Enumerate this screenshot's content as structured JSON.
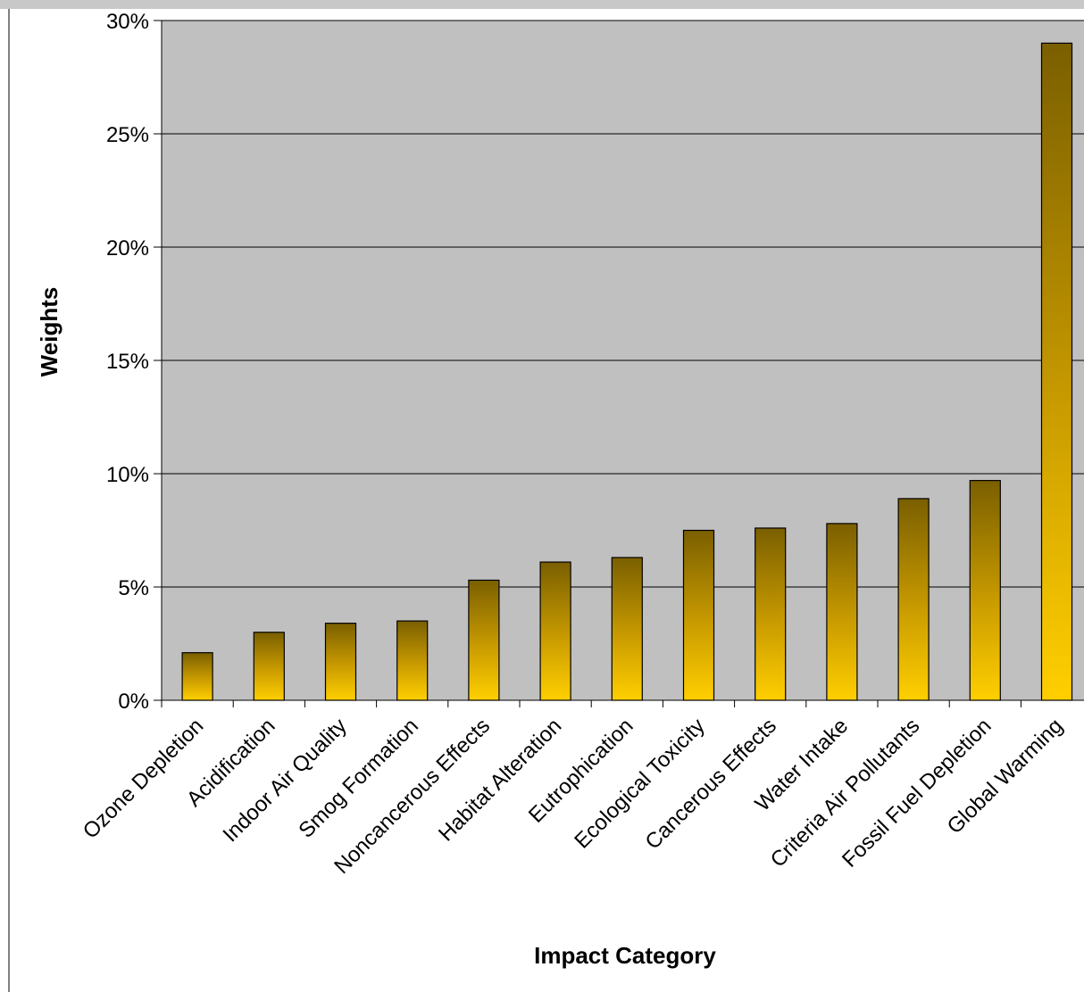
{
  "chart_data": {
    "type": "bar",
    "title": "",
    "xlabel": "Impact Category",
    "ylabel": "Weights",
    "ylim": [
      0,
      0.3
    ],
    "y_ticks": [
      0,
      0.05,
      0.1,
      0.15,
      0.2,
      0.25,
      0.3
    ],
    "y_tick_labels": [
      "0%",
      "5%",
      "10%",
      "15%",
      "20%",
      "25%",
      "30%"
    ],
    "categories": [
      "Ozone Depletion",
      "Acidification",
      "Indoor Air Quality",
      "Smog Formation",
      "Noncancerous Effects",
      "Habitat Alteration",
      "Eutrophication",
      "Ecological Toxicity",
      "Cancerous Effects",
      "Water Intake",
      "Criteria Air Pollutants",
      "Fossil Fuel Depletion",
      "Global Warming"
    ],
    "values": [
      0.021,
      0.03,
      0.034,
      0.035,
      0.053,
      0.061,
      0.063,
      0.075,
      0.076,
      0.078,
      0.089,
      0.097,
      0.29
    ],
    "grid": true,
    "legend": "none",
    "colors": {
      "plot_background": "#c0c0c0",
      "bar_top": "#7a5f00",
      "bar_mid": "#c99b00",
      "bar_bottom": "#ffcf00",
      "bar_outline": "#000000",
      "gridline": "#000000"
    }
  }
}
